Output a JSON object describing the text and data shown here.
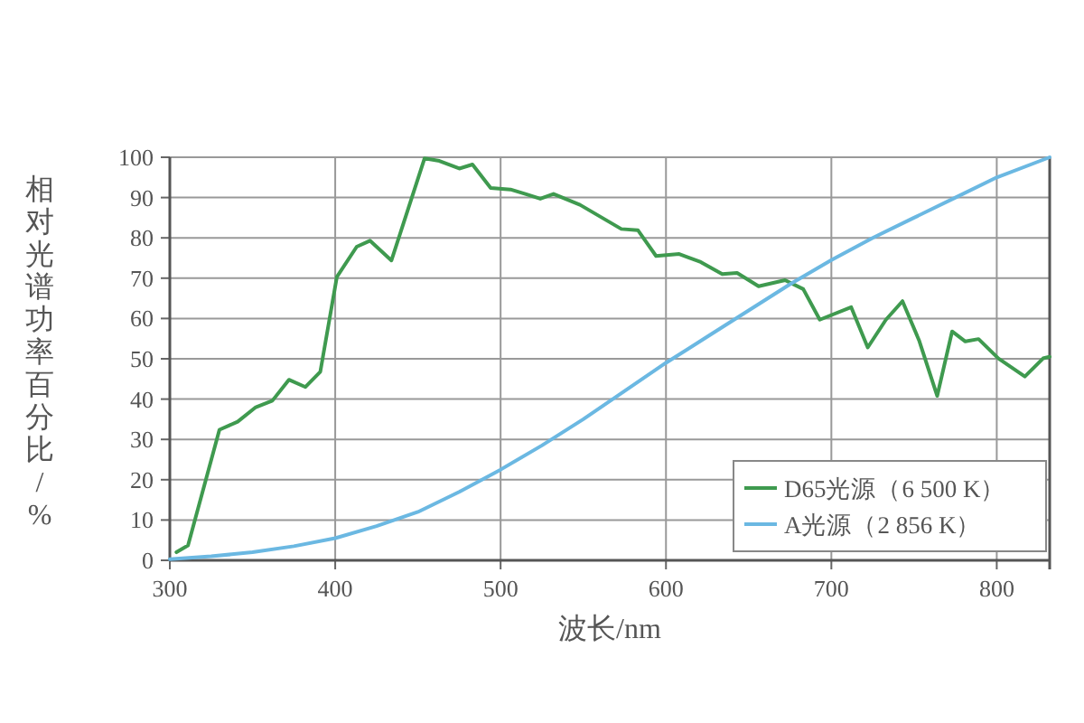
{
  "chart_data": {
    "type": "line",
    "xlabel": "波长/nm",
    "ylabel": "相对光谱功率百分比/%",
    "xlim": [
      300,
      832
    ],
    "ylim": [
      0,
      100
    ],
    "xticks": [
      300,
      400,
      500,
      600,
      700,
      800
    ],
    "yticks": [
      0,
      10,
      20,
      30,
      40,
      50,
      60,
      70,
      80,
      90,
      100
    ],
    "grid": true,
    "legend": "bottom right",
    "series": [
      {
        "name": "D65光源（6 500 K）",
        "color": "#3f9a4f",
        "x": [
          304,
          311,
          330,
          341,
          352,
          362,
          372,
          382,
          391,
          401,
          413,
          421,
          434,
          454,
          463,
          475,
          483,
          494,
          506,
          515,
          524,
          532,
          548,
          573,
          583,
          594,
          608,
          621,
          634,
          643,
          656,
          672,
          683,
          693,
          712,
          722,
          733,
          743,
          753,
          764,
          773,
          781,
          789,
          801,
          817,
          828,
          832
        ],
        "values": [
          2,
          3.7,
          32.4,
          34.4,
          38,
          39.6,
          44.8,
          43,
          46.8,
          70.3,
          77.8,
          79.3,
          74.4,
          99.7,
          99.1,
          97.2,
          98.2,
          92.4,
          92,
          90.9,
          89.7,
          90.9,
          88.2,
          82.2,
          81.9,
          75.5,
          76,
          74,
          71,
          71.3,
          68,
          69.5,
          67.3,
          59.7,
          62.8,
          52.8,
          59.7,
          64.3,
          54.6,
          40.8,
          56.8,
          54.3,
          54.9,
          50.1,
          45.6,
          50.1,
          50.5
        ]
      },
      {
        "name": "A光源（2 856 K）",
        "color": "#6bb8e2",
        "x": [
          300,
          325,
          350,
          375,
          400,
          425,
          450,
          475,
          500,
          525,
          550,
          575,
          600,
          625,
          650,
          675,
          700,
          725,
          750,
          775,
          800,
          832
        ],
        "values": [
          0.3,
          1,
          2,
          3.5,
          5.5,
          8.5,
          12,
          17,
          22.5,
          28.5,
          35,
          42,
          49,
          55.5,
          62,
          68.5,
          74.5,
          80,
          85,
          90,
          95,
          100
        ]
      }
    ]
  }
}
